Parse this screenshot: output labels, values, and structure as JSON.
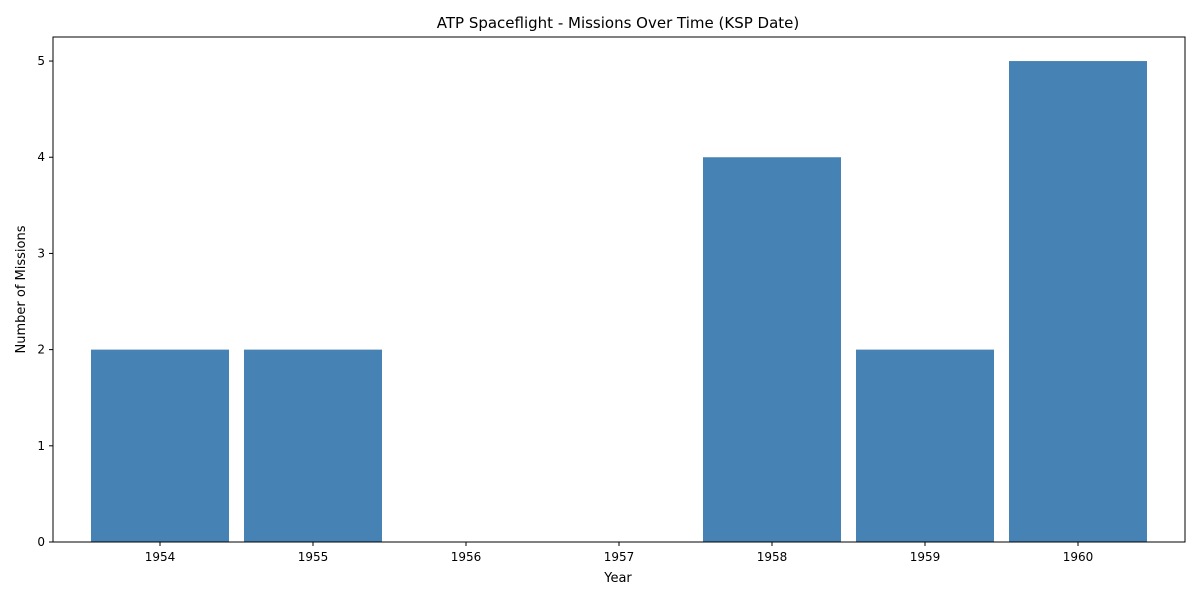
{
  "chart_data": {
    "type": "bar",
    "title": "ATP Spaceflight - Missions Over Time (KSP Date)",
    "xlabel": "Year",
    "ylabel": "Number of Missions",
    "categories": [
      "1954",
      "1955",
      "1956",
      "1957",
      "1958",
      "1959",
      "1960"
    ],
    "values": [
      2,
      2,
      0,
      0,
      4,
      2,
      5
    ],
    "ylim": [
      0,
      5.25
    ],
    "yticks": [
      "0",
      "1",
      "2",
      "3",
      "4",
      "5"
    ],
    "bar_color": "#4682b4",
    "grid": false,
    "legend": "none"
  }
}
